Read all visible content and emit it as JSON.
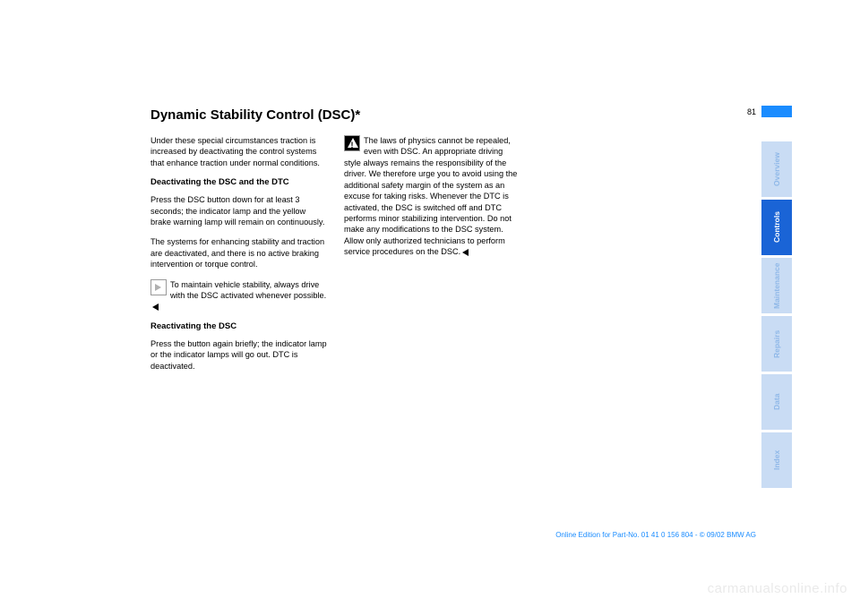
{
  "page": {
    "number": "81",
    "title": "Dynamic Stability Control (DSC)*",
    "col1": {
      "p1": "Under these special circumstances traction is increased by deactivating the control systems that enhance traction under normal conditions.",
      "h1": "Deactivating the DSC and the DTC",
      "p2": "Press the DSC button down for at least 3 seconds; the indicator lamp and the yellow brake warning lamp will remain on continuously.",
      "p3": "The systems for enhancing stability and traction are deactivated, and there is no active braking intervention or torque control.",
      "note": "To maintain vehicle stability, always drive with the DSC activated whenever possible.",
      "h2": "Reactivating the DSC",
      "p4": "Press the button again briefly; the indicator lamp or the indicator lamps will go out. DTC is deactivated."
    },
    "col2": {
      "warn": "The laws of physics cannot be repealed, even with DSC. An appropriate driving style always remains the responsibility of the driver. We therefore urge you to avoid using the additional safety margin of the system as an excuse for taking risks. Whenever the DTC is activated, the DSC is switched off and DTC performs minor stabilizing intervention.\nDo not make any modifications to the DSC system. Allow only authorized technicians to perform service procedures on the DSC."
    }
  },
  "tabs": [
    {
      "label": "Overview",
      "active": false
    },
    {
      "label": "Controls",
      "active": true
    },
    {
      "label": "Maintenance",
      "active": false
    },
    {
      "label": "Repairs",
      "active": false
    },
    {
      "label": "Data",
      "active": false
    },
    {
      "label": "Index",
      "active": false
    }
  ],
  "footer": "Online Edition for Part-No. 01 41 0 156 804 - © 09/02 BMW AG",
  "watermark": "carmanualsonline.info"
}
